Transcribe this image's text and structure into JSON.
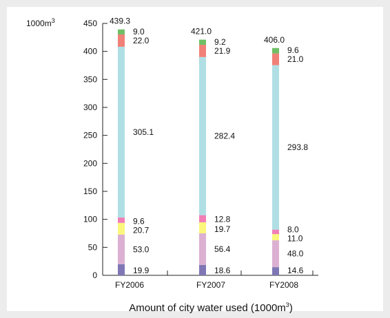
{
  "chart_data": {
    "type": "bar",
    "stacked": true,
    "categories": [
      "FY2006",
      "FY2007",
      "FY2008"
    ],
    "totals": [
      "439.3",
      "421.0",
      "406.0"
    ],
    "series": [
      {
        "values": [
          19.9,
          18.6,
          14.6
        ],
        "color": "#7f77b5"
      },
      {
        "values": [
          53.0,
          56.4,
          48.0
        ],
        "color": "#dcb0d2"
      },
      {
        "values": [
          20.7,
          19.7,
          11.0
        ],
        "color": "#fbf77c"
      },
      {
        "values": [
          9.6,
          12.8,
          8.0
        ],
        "color": "#f17fb6"
      },
      {
        "values": [
          305.1,
          282.4,
          293.8
        ],
        "color": "#afdfe4"
      },
      {
        "values": [
          22.0,
          21.9,
          21.0
        ],
        "color": "#f08078"
      },
      {
        "values": [
          9.0,
          9.2,
          9.6
        ],
        "color": "#6fbf66"
      }
    ],
    "value_labels": [
      [
        "19.9",
        "18.6",
        "14.6"
      ],
      [
        "53.0",
        "56.4",
        "48.0"
      ],
      [
        "20.7",
        "19.7",
        "11.0"
      ],
      [
        "9.6",
        "12.8",
        "8.0"
      ],
      [
        "305.1",
        "282.4",
        "293.8"
      ],
      [
        "22.0",
        "21.9",
        "21.0"
      ],
      [
        "9.0",
        "9.2",
        "9.6"
      ]
    ],
    "yticks": [
      "0",
      "50",
      "100",
      "150",
      "200",
      "250",
      "300",
      "350",
      "400",
      "450"
    ],
    "ylim": [
      0,
      450
    ],
    "y_unit": "1000m",
    "y_unit_sup": "3",
    "xlabel_main": "Amount of city water used (1000m",
    "xlabel_sup": "3",
    "xlabel_end": ")",
    "grid": false
  }
}
